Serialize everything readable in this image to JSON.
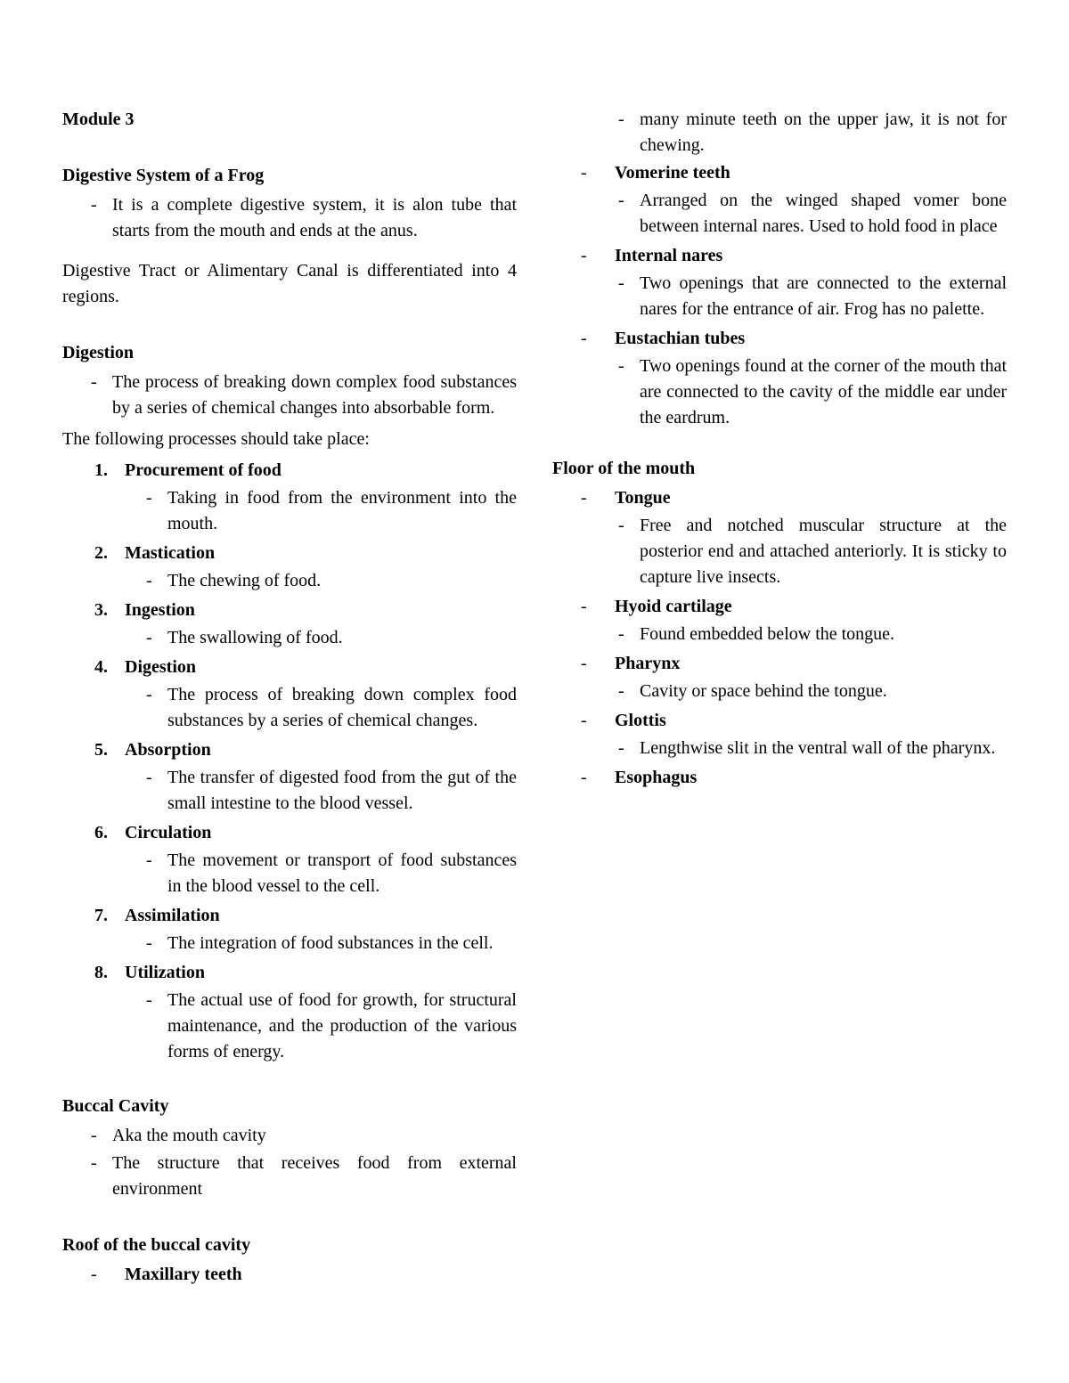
{
  "module_title": "Module 3",
  "digestive_system": {
    "heading": "Digestive System of a Frog",
    "desc": "It is a complete digestive system, it is alon tube that starts from the mouth and ends at the anus."
  },
  "tract_sentence": "Digestive Tract or Alimentary Canal is differentiated into 4 regions.",
  "digestion": {
    "heading": "Digestion",
    "desc": "The process of breaking down complex food substances by a series of chemical changes into absorbable form.",
    "intro": "The following processes should take place:",
    "processes": [
      {
        "label": "Procurement of food",
        "desc": "Taking in food from the environment into the mouth."
      },
      {
        "label": "Mastication",
        "desc": "The chewing of food."
      },
      {
        "label": "Ingestion",
        "desc": "The swallowing of food."
      },
      {
        "label": "Digestion",
        "desc": "The process of breaking  down complex food substances by a series of chemical changes."
      },
      {
        "label": "Absorption",
        "desc": "The transfer of digested food from the gut of the small intestine to the blood vessel."
      },
      {
        "label": "Circulation",
        "desc": "The movement or transport of food substances in the blood vessel to the cell."
      },
      {
        "label": "Assimilation",
        "desc": "The integration of food substances in the cell."
      },
      {
        "label": "Utilization",
        "desc": "The actual use of food for growth, for structural maintenance, and the production of the various forms of energy."
      }
    ]
  },
  "buccal": {
    "heading": "Buccal Cavity",
    "items": [
      "Aka the mouth cavity",
      "The structure that receives food from external environment"
    ]
  },
  "roof": {
    "heading": "Roof of the buccal cavity",
    "items": [
      {
        "label": "Maxillary teeth",
        "desc": "many minute teeth on the upper jaw, it is not for chewing."
      },
      {
        "label": "Vomerine teeth",
        "desc": "Arranged on the winged shaped vomer bone between internal nares. Used to hold food in place"
      },
      {
        "label": "Internal nares",
        "desc": "Two openings that are connected to the external nares for the entrance of air. Frog has no palette."
      },
      {
        "label": "Eustachian tubes",
        "desc": "Two openings found at the corner of the mouth that are connected to the cavity of the middle ear under the eardrum."
      }
    ]
  },
  "floor": {
    "heading": "Floor of the mouth",
    "items": [
      {
        "label": "Tongue",
        "desc": "Free  and notched muscular structure at the posterior end and attached anteriorly. It is sticky to capture live insects."
      },
      {
        "label": "Hyoid cartilage",
        "desc": "Found embedded below the tongue."
      },
      {
        "label": "Pharynx",
        "desc": "Cavity or space behind the tongue."
      },
      {
        "label": "Glottis",
        "desc": "Lengthwise slit in the ventral wall of the pharynx."
      },
      {
        "label": "Esophagus",
        "desc": ""
      }
    ]
  }
}
